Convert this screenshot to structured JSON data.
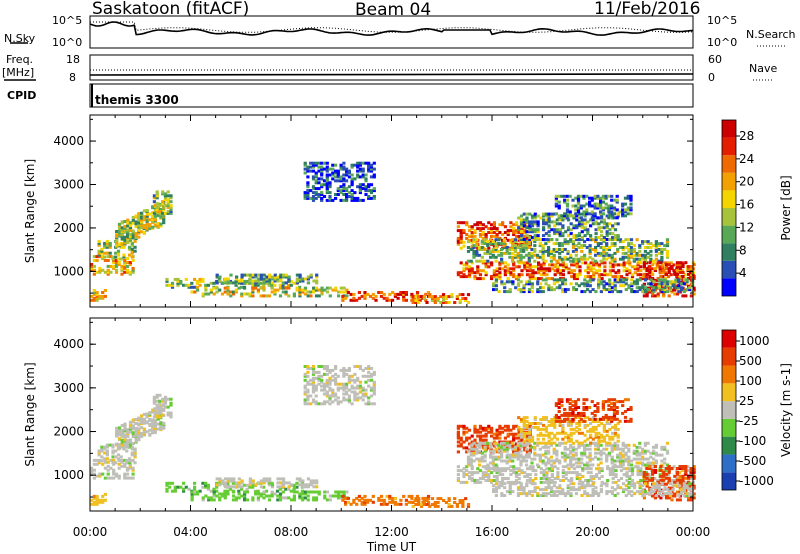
{
  "header": {
    "station": "Saskatoon (fitACF)",
    "beam": "Beam 04",
    "date": "11/Feb/2016"
  },
  "top_panels": {
    "nsky_label": "N.Sky",
    "nsky_ticks": [
      "10^5",
      "10^0"
    ],
    "nsearch_label": "N.Search",
    "freq_label": "Freq.",
    "freq_unit": "[MHz]",
    "freq_ticks": [
      "18",
      "8"
    ],
    "nave_label": "Nave",
    "nave_ticks": [
      "60",
      "0"
    ],
    "cpid_label": "CPID",
    "cpid_value": "themis 3300"
  },
  "chart_data": [
    {
      "type": "heatmap",
      "name": "power",
      "ylabel": "Slant Range [km]",
      "xlabel": "",
      "ylim": [
        180,
        4600
      ],
      "yticks": [
        "1000",
        "2000",
        "3000",
        "4000"
      ],
      "xlim": [
        "00:00",
        "24:00"
      ],
      "colorbar": {
        "label": "Power [dB]",
        "ticks": [
          "4",
          "8",
          "12",
          "16",
          "20",
          "24",
          "28"
        ],
        "colors": [
          "#0000ff",
          "#2a4fb5",
          "#2f7f60",
          "#58a858",
          "#a6c33b",
          "#f5d500",
          "#f2a100",
          "#ef6a00",
          "#e61e00",
          "#cc0000"
        ]
      }
    },
    {
      "type": "heatmap",
      "name": "velocity",
      "ylabel": "Slant Range [km]",
      "xlabel": "Time UT",
      "ylim": [
        180,
        4600
      ],
      "yticks": [
        "1000",
        "2000",
        "3000",
        "4000"
      ],
      "xticks": [
        "00:00",
        "04:00",
        "08:00",
        "12:00",
        "16:00",
        "20:00",
        "00:00"
      ],
      "colorbar": {
        "label": "Velocity [m s-1]",
        "ticks": [
          "1000",
          "500",
          "100",
          "25",
          "-25",
          "-100",
          "-500",
          "-1000"
        ],
        "colors": [
          "#1b3fb0",
          "#2f6fc8",
          "#2f8a4a",
          "#66cc33",
          "#bfbfb8",
          "#f0c020",
          "#f07800",
          "#e63c00",
          "#dd0000"
        ]
      }
    }
  ]
}
